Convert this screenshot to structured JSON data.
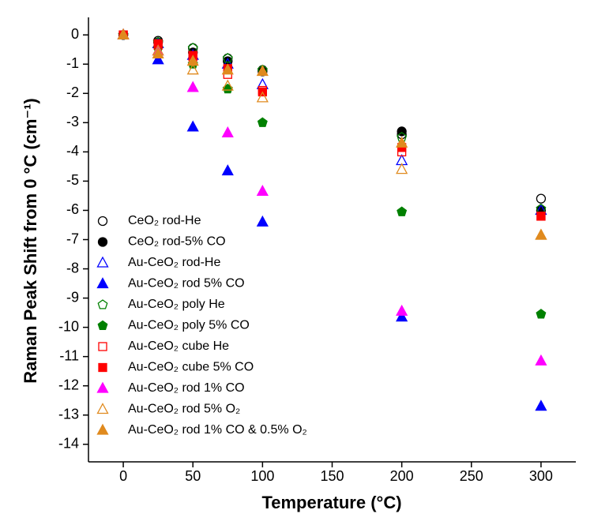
{
  "chart_data": {
    "type": "scatter",
    "x_label": "Temperature (°C)",
    "y_label": "Raman Peak Shift from 0 °C (cm⁻¹)",
    "x": [
      0,
      25,
      50,
      75,
      100,
      200,
      300
    ],
    "xlim": [
      -25,
      325
    ],
    "xticks": [
      0,
      50,
      100,
      150,
      200,
      250,
      300
    ],
    "ylim": [
      -14.6,
      0.6
    ],
    "yticks": [
      0,
      -1,
      -2,
      -3,
      -4,
      -5,
      -6,
      -7,
      -8,
      -9,
      -10,
      -11,
      -12,
      -13,
      -14
    ],
    "legend": "lower left",
    "series": [
      {
        "name": "CeO₂ rod-He",
        "color": "#000000",
        "marker": "circle",
        "filled": false,
        "values": [
          0,
          -0.2,
          -0.45,
          -0.8,
          -1.2,
          -3.4,
          -5.6
        ]
      },
      {
        "name": "CeO₂ rod-5% CO",
        "color": "#000000",
        "marker": "circle",
        "filled": true,
        "values": [
          0,
          -0.25,
          -0.6,
          -0.9,
          -1.25,
          -3.3,
          -6.0
        ]
      },
      {
        "name": "Au-CeO₂ rod-He",
        "color": "#0000ff",
        "marker": "triangle",
        "filled": false,
        "values": [
          0,
          -0.3,
          -0.7,
          -1.0,
          -1.7,
          -4.3,
          -6.0
        ]
      },
      {
        "name": "Au-CeO₂ rod 5% CO",
        "color": "#0000ff",
        "marker": "triangle",
        "filled": true,
        "values": [
          0,
          -0.85,
          -3.15,
          -4.65,
          -6.4,
          -9.65,
          -12.7
        ]
      },
      {
        "name": "Au-CeO₂ poly He",
        "color": "#008000",
        "marker": "pentagon",
        "filled": false,
        "values": [
          0,
          -0.25,
          -0.45,
          -0.8,
          -1.2,
          -3.5,
          -5.95
        ]
      },
      {
        "name": "Au-CeO₂ poly 5% CO",
        "color": "#008000",
        "marker": "pentagon",
        "filled": true,
        "values": [
          0,
          -0.45,
          -1.0,
          -1.85,
          -3.0,
          -6.05,
          -9.55
        ]
      },
      {
        "name": "Au-CeO₂ cube He",
        "color": "#ff0000",
        "marker": "square",
        "filled": false,
        "values": [
          0,
          -0.35,
          -0.75,
          -1.35,
          -1.9,
          -4.0,
          -6.2
        ]
      },
      {
        "name": "Au-CeO₂ cube 5% CO",
        "color": "#ff0000",
        "marker": "square",
        "filled": true,
        "values": [
          0,
          -0.3,
          -0.7,
          -1.15,
          -1.95,
          -3.85,
          -6.2
        ]
      },
      {
        "name": "Au-CeO₂ rod 1% CO",
        "color": "#ff00ff",
        "marker": "triangle",
        "filled": true,
        "values": [
          0,
          -0.55,
          -1.8,
          -3.35,
          -5.35,
          -9.45,
          -11.15
        ]
      },
      {
        "name": "Au-CeO₂ rod 5% O₂",
        "color": "#e08a1e",
        "marker": "triangle",
        "filled": false,
        "values": [
          0,
          -0.55,
          -1.2,
          -1.75,
          -2.15,
          -4.6,
          -6.85
        ]
      },
      {
        "name": "Au-CeO₂ rod 1% CO & 0.5% O₂",
        "color": "#e08a1e",
        "marker": "triangle",
        "filled": true,
        "values": [
          0,
          -0.65,
          -0.9,
          -1.2,
          -1.25,
          -3.7,
          -6.85
        ]
      }
    ]
  }
}
